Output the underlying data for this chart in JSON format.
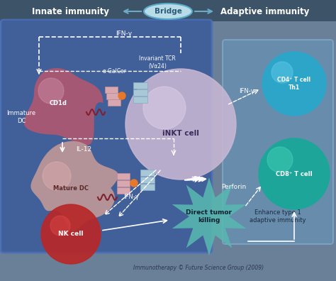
{
  "bg_color": "#6a7f98",
  "header_bg": "#4a6070",
  "innate_text": "Innate immunity",
  "adaptive_text": "Adaptive immunity",
  "bridge_text": "Bridge",
  "bridge_fill": "#b8dce8",
  "bridge_edge": "#5aaac8",
  "innate_box_fill": "#3a5a9a",
  "innate_box_edge": "#4a70b8",
  "adaptive_box_fill": "#6898be",
  "adaptive_box_edge": "#88b8d8",
  "immature_dc_color": "#b05870",
  "mature_dc_color": "#c09898",
  "nk_cell_color": "#b82828",
  "inkt_color": "#c0b0cc",
  "cd4_color": "#28a8cc",
  "cd8_color": "#18a898",
  "tumor_color": "#58b8b0",
  "white": "#ffffff",
  "ifn_gamma": "IFN-γ",
  "il12": "IL-12",
  "perforin": "Perforin",
  "alpha_galcer": "α-GalCer",
  "tcr_label": "Invariant TCR\n(Vα24)",
  "inkt_label": "iNKT cell",
  "immature_dc_label": "Immature\nDC",
  "mature_dc_label": "Mature DC",
  "nk_label": "NK cell",
  "cd1d_label": "CD1d",
  "cd4_label": "CD4⁺ T cell\nTh1",
  "cd8_label": "CD8⁺ T cell",
  "enhance_label": "Enhance type 1\nadaptive immunity",
  "tumor_label": "Direct tumor\nkilling",
  "copyright": "Immunotherapy © Future Science Group (2009)"
}
